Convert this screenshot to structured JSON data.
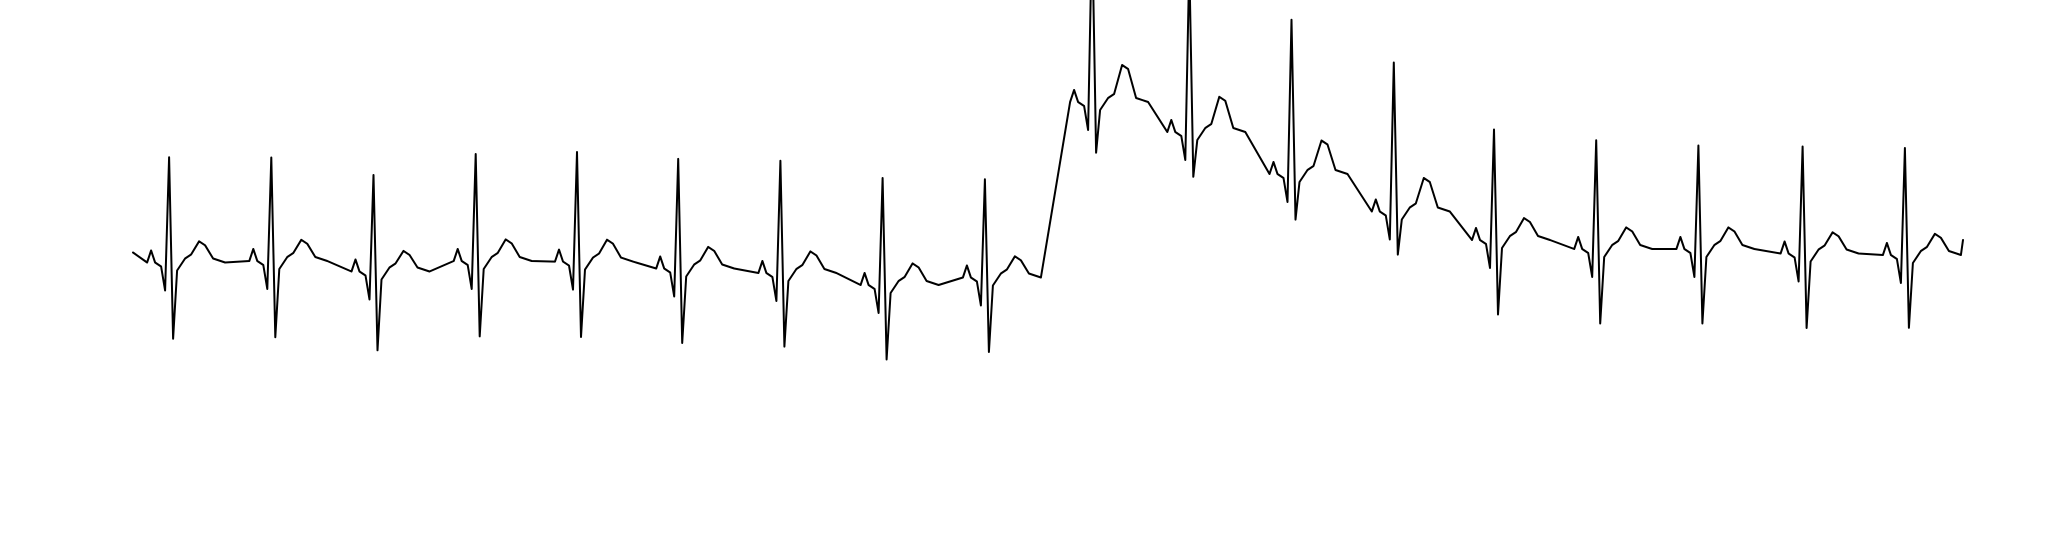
{
  "chart_data": {
    "type": "line",
    "title": "",
    "xlabel": "",
    "ylabel": "",
    "grid": false,
    "legend": "none",
    "axes_visible": false,
    "line_color": "#000000",
    "background_color": "#ffffff",
    "beats": [
      {
        "x": 0.018,
        "y": 0.465,
        "r": 0.59,
        "s": 0.92,
        "t": 0.55,
        "p": 0.525
      },
      {
        "x": 0.069,
        "y": 0.47,
        "r": 0.58,
        "s": 0.92,
        "t": 0.55,
        "p": 0.52
      },
      {
        "x": 0.12,
        "y": 0.435,
        "r": 0.54,
        "s": 0.95,
        "t": 0.53,
        "p": 0.515
      },
      {
        "x": 0.171,
        "y": 0.47,
        "r": 0.6,
        "s": 0.91,
        "t": 0.56,
        "p": 0.515
      },
      {
        "x": 0.2215,
        "y": 0.468,
        "r": 0.615,
        "s": 0.91,
        "t": 0.57,
        "p": 0.53
      },
      {
        "x": 0.272,
        "y": 0.445,
        "r": 0.615,
        "s": 0.9,
        "t": 0.56,
        "p": 0.52
      },
      {
        "x": 0.323,
        "y": 0.43,
        "r": 0.63,
        "s": 0.89,
        "t": 0.56,
        "p": 0.525
      },
      {
        "x": 0.374,
        "y": 0.39,
        "r": 0.6,
        "s": 0.9,
        "t": 0.56,
        "p": 0.525
      },
      {
        "x": 0.425,
        "y": 0.415,
        "r": 0.55,
        "s": 0.9,
        "t": 0.55,
        "p": 0.52
      },
      {
        "x": 0.4785,
        "y": 1.0,
        "r": 1.0,
        "s": 0.62,
        "t": 1.0,
        "p": 0.75
      },
      {
        "x": 0.527,
        "y": 0.9,
        "r": 0.95,
        "s": 0.55,
        "t": 0.95,
        "p": 0.7
      },
      {
        "x": 0.578,
        "y": 0.76,
        "r": 0.87,
        "s": 0.56,
        "t": 0.9,
        "p": 0.7
      },
      {
        "x": 0.629,
        "y": 0.635,
        "r": 0.84,
        "s": 0.53,
        "t": 0.9,
        "p": 0.68
      },
      {
        "x": 0.679,
        "y": 0.54,
        "r": 0.62,
        "s": 0.9,
        "t": 0.57,
        "p": 0.53
      },
      {
        "x": 0.73,
        "y": 0.51,
        "r": 0.61,
        "s": 0.9,
        "t": 0.56,
        "p": 0.52
      },
      {
        "x": 0.781,
        "y": 0.51,
        "r": 0.58,
        "s": 0.9,
        "t": 0.56,
        "p": 0.52
      },
      {
        "x": 0.833,
        "y": 0.495,
        "r": 0.6,
        "s": 0.9,
        "t": 0.55,
        "p": 0.52
      },
      {
        "x": 0.884,
        "y": 0.49,
        "r": 0.6,
        "s": 0.88,
        "t": 0.55,
        "p": 0.52
      }
    ],
    "trace_start": {
      "x": 0.0,
      "y": 0.41
    },
    "trace_end": {
      "x": 0.913,
      "y": 0.5
    }
  }
}
